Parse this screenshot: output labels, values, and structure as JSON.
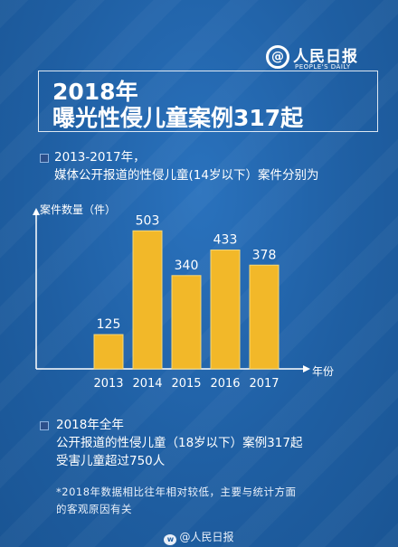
{
  "brand": {
    "name_cn": "人民日报",
    "name_en": "PEOPLE'S DAILY"
  },
  "headline": {
    "year": "2018年",
    "main": "曝光性侵儿童案例317起"
  },
  "intro": {
    "line1": "2013-2017年，",
    "line2": "媒体公开报道的性侵儿童(14岁以下）案件分别为"
  },
  "chart_data": {
    "type": "bar",
    "categories": [
      "2013",
      "2014",
      "2015",
      "2016",
      "2017"
    ],
    "values": [
      125,
      503,
      340,
      433,
      378
    ],
    "ylabel": "案件数量（件）",
    "xlabel": "年份",
    "ylim": [
      0,
      560
    ],
    "bar_color": "#f2b829"
  },
  "summary": {
    "line1": "2018年全年",
    "line2": "公开报道的性侵儿童（18岁以下）案例317起",
    "line3": "受害儿童超过750人"
  },
  "note": {
    "line1": "*2018年数据相比往年相对较低，主要与统计方面",
    "line2": "的客观原因有关"
  },
  "footer": {
    "text": "@人民日报"
  },
  "colors": {
    "background": "#1f5fa3",
    "bar": "#f2b829"
  }
}
